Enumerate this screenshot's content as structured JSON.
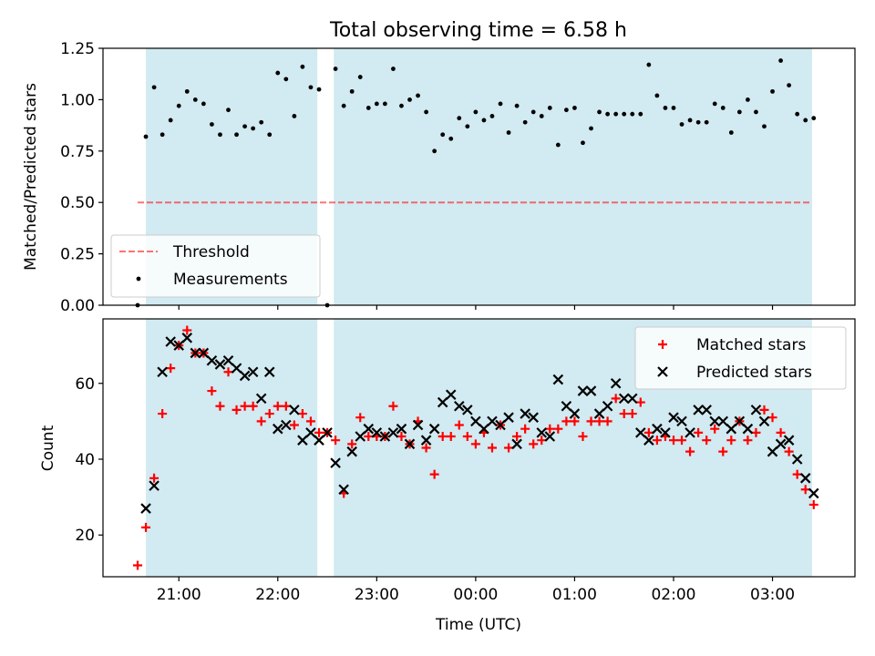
{
  "figure_title": "Total observing time = 6.58 h",
  "colors": {
    "shade": "#add8e6",
    "threshold": "#ff0000",
    "measurements": "#000000",
    "matched": "#ff0000",
    "predicted": "#000000"
  },
  "x_ticks": [
    {
      "label": "21:00",
      "value": 21.0
    },
    {
      "label": "22:00",
      "value": 22.0
    },
    {
      "label": "23:00",
      "value": 23.0
    },
    {
      "label": "00:00",
      "value": 24.0
    },
    {
      "label": "01:00",
      "value": 25.0
    },
    {
      "label": "02:00",
      "value": 26.0
    },
    {
      "label": "03:00",
      "value": 27.0
    }
  ],
  "chart_data": [
    {
      "type": "scatter",
      "title": "Total observing time = 6.58 h",
      "xlabel": "",
      "ylabel": "Matched/Predicted stars",
      "xlim": [
        "20:14",
        "03:50"
      ],
      "ylim": [
        0,
        1.25
      ],
      "yticks": [
        "0.00",
        "0.25",
        "0.50",
        "0.75",
        "1.00",
        "1.25"
      ],
      "grid": false,
      "legend_position": "lower-left",
      "shaded_intervals": [
        [
          "20:40",
          "22:24"
        ],
        [
          "22:34",
          "03:24"
        ]
      ],
      "threshold": {
        "name": "Threshold",
        "value": 0.5,
        "x_range": [
          "20:35",
          "03:24"
        ]
      },
      "series": [
        {
          "name": "Measurements",
          "x": [
            "20:35",
            "20:40",
            "20:45",
            "20:50",
            "20:55",
            "21:00",
            "21:05",
            "21:10",
            "21:15",
            "21:20",
            "21:25",
            "21:30",
            "21:35",
            "21:40",
            "21:45",
            "21:50",
            "21:55",
            "22:00",
            "22:05",
            "22:10",
            "22:15",
            "22:20",
            "22:25",
            "22:30",
            "22:35",
            "22:40",
            "22:45",
            "22:50",
            "22:55",
            "23:00",
            "23:05",
            "23:10",
            "23:15",
            "23:20",
            "23:25",
            "23:30",
            "23:35",
            "23:40",
            "23:45",
            "23:50",
            "23:55",
            "00:00",
            "00:05",
            "00:10",
            "00:15",
            "00:20",
            "00:25",
            "00:30",
            "00:35",
            "00:40",
            "00:45",
            "00:50",
            "00:55",
            "01:00",
            "01:05",
            "01:10",
            "01:15",
            "01:20",
            "01:25",
            "01:30",
            "01:35",
            "01:40",
            "01:45",
            "01:50",
            "01:55",
            "02:00",
            "02:05",
            "02:10",
            "02:15",
            "02:20",
            "02:25",
            "02:30",
            "02:35",
            "02:40",
            "02:45",
            "02:50",
            "02:55",
            "03:00",
            "03:05",
            "03:10",
            "03:15",
            "03:20",
            "03:25"
          ],
          "y": [
            0.0,
            0.82,
            1.06,
            0.83,
            0.9,
            0.97,
            1.04,
            1.0,
            0.98,
            0.88,
            0.83,
            0.95,
            0.83,
            0.87,
            0.86,
            0.89,
            0.83,
            1.13,
            1.1,
            0.92,
            1.16,
            1.06,
            1.05,
            0.0,
            1.15,
            0.97,
            1.04,
            1.11,
            0.96,
            0.98,
            0.98,
            1.15,
            0.97,
            1.0,
            1.02,
            0.94,
            0.75,
            0.83,
            0.81,
            0.91,
            0.87,
            0.94,
            0.9,
            0.92,
            0.98,
            0.84,
            0.97,
            0.89,
            0.94,
            0.92,
            0.96,
            0.78,
            0.95,
            0.96,
            0.79,
            0.86,
            0.94,
            0.93,
            0.93,
            0.93,
            0.93,
            0.93,
            1.17,
            1.02,
            0.96,
            0.96,
            0.88,
            0.9,
            0.89,
            0.89,
            0.98,
            0.96,
            0.84,
            0.94,
            1.0,
            0.94,
            0.87,
            1.04,
            1.19,
            1.07,
            0.93,
            0.9,
            0.91
          ]
        }
      ]
    },
    {
      "type": "scatter",
      "title": "",
      "xlabel": "Time (UTC)",
      "ylabel": "Count",
      "xlim": [
        "20:14",
        "03:50"
      ],
      "ylim": [
        9,
        77
      ],
      "yticks": [
        "20",
        "40",
        "60"
      ],
      "grid": false,
      "legend_position": "upper-right",
      "shaded_intervals": [
        [
          "20:40",
          "22:24"
        ],
        [
          "22:34",
          "03:24"
        ]
      ],
      "series": [
        {
          "name": "Matched stars",
          "marker": "+",
          "x": [
            "20:35",
            "20:40",
            "20:45",
            "20:50",
            "20:55",
            "21:00",
            "21:05",
            "21:10",
            "21:15",
            "21:20",
            "21:25",
            "21:30",
            "21:35",
            "21:40",
            "21:45",
            "21:50",
            "21:55",
            "22:00",
            "22:05",
            "22:10",
            "22:15",
            "22:20",
            "22:25",
            "22:30",
            "22:35",
            "22:40",
            "22:45",
            "22:50",
            "22:55",
            "23:00",
            "23:05",
            "23:10",
            "23:15",
            "23:20",
            "23:25",
            "23:30",
            "23:35",
            "23:40",
            "23:45",
            "23:50",
            "23:55",
            "00:00",
            "00:05",
            "00:10",
            "00:15",
            "00:20",
            "00:25",
            "00:30",
            "00:35",
            "00:40",
            "00:45",
            "00:50",
            "00:55",
            "01:00",
            "01:05",
            "01:10",
            "01:15",
            "01:20",
            "01:25",
            "01:30",
            "01:35",
            "01:40",
            "01:45",
            "01:50",
            "01:55",
            "02:00",
            "02:05",
            "02:10",
            "02:15",
            "02:20",
            "02:25",
            "02:30",
            "02:35",
            "02:40",
            "02:45",
            "02:50",
            "02:55",
            "03:00",
            "03:05",
            "03:10",
            "03:15",
            "03:20",
            "03:25"
          ],
          "y": [
            12,
            22,
            35,
            52,
            64,
            70,
            74,
            68,
            68,
            58,
            54,
            63,
            53,
            54,
            54,
            50,
            52,
            54,
            54,
            49,
            52,
            50,
            47,
            47,
            45,
            31,
            44,
            51,
            46,
            46,
            46,
            54,
            46,
            44,
            50,
            43,
            36,
            46,
            46,
            49,
            46,
            44,
            47,
            43,
            49,
            43,
            46,
            48,
            44,
            45,
            48,
            48,
            50,
            50,
            46,
            50,
            50,
            50,
            56,
            52,
            52,
            55,
            47,
            45,
            46,
            45,
            45,
            42,
            47,
            45,
            48,
            42,
            45,
            50,
            45,
            47,
            53,
            51,
            47,
            42,
            36,
            32,
            28
          ]
        },
        {
          "name": "Predicted stars",
          "marker": "x",
          "x": [
            "20:40",
            "20:45",
            "20:50",
            "20:55",
            "21:00",
            "21:05",
            "21:10",
            "21:15",
            "21:20",
            "21:25",
            "21:30",
            "21:35",
            "21:40",
            "21:45",
            "21:50",
            "21:55",
            "22:00",
            "22:05",
            "22:10",
            "22:15",
            "22:20",
            "22:25",
            "22:30",
            "22:35",
            "22:40",
            "22:45",
            "22:50",
            "22:55",
            "23:00",
            "23:05",
            "23:10",
            "23:15",
            "23:20",
            "23:25",
            "23:30",
            "23:35",
            "23:40",
            "23:45",
            "23:50",
            "23:55",
            "00:00",
            "00:05",
            "00:10",
            "00:15",
            "00:20",
            "00:25",
            "00:30",
            "00:35",
            "00:40",
            "00:45",
            "00:50",
            "00:55",
            "01:00",
            "01:05",
            "01:10",
            "01:15",
            "01:20",
            "01:25",
            "01:30",
            "01:35",
            "01:40",
            "01:45",
            "01:50",
            "01:55",
            "02:00",
            "02:05",
            "02:10",
            "02:15",
            "02:20",
            "02:25",
            "02:30",
            "02:35",
            "02:40",
            "02:45",
            "02:50",
            "02:55",
            "03:00",
            "03:05",
            "03:10",
            "03:15",
            "03:20",
            "03:25"
          ],
          "y": [
            27,
            33,
            63,
            71,
            70,
            72,
            68,
            68,
            66,
            65,
            66,
            64,
            62,
            63,
            56,
            63,
            48,
            49,
            53,
            45,
            47,
            45,
            47,
            39,
            32,
            42,
            46,
            48,
            47,
            46,
            47,
            48,
            44,
            49,
            45,
            48,
            55,
            57,
            54,
            53,
            50,
            48,
            50,
            49,
            51,
            44,
            52,
            51,
            47,
            46,
            61,
            54,
            52,
            58,
            58,
            52,
            54,
            60,
            56,
            56,
            47,
            45,
            48,
            47,
            51,
            50,
            47,
            53,
            53,
            50,
            50,
            48,
            50,
            48,
            53,
            50,
            42,
            44,
            45,
            40,
            35,
            31
          ]
        }
      ]
    }
  ]
}
